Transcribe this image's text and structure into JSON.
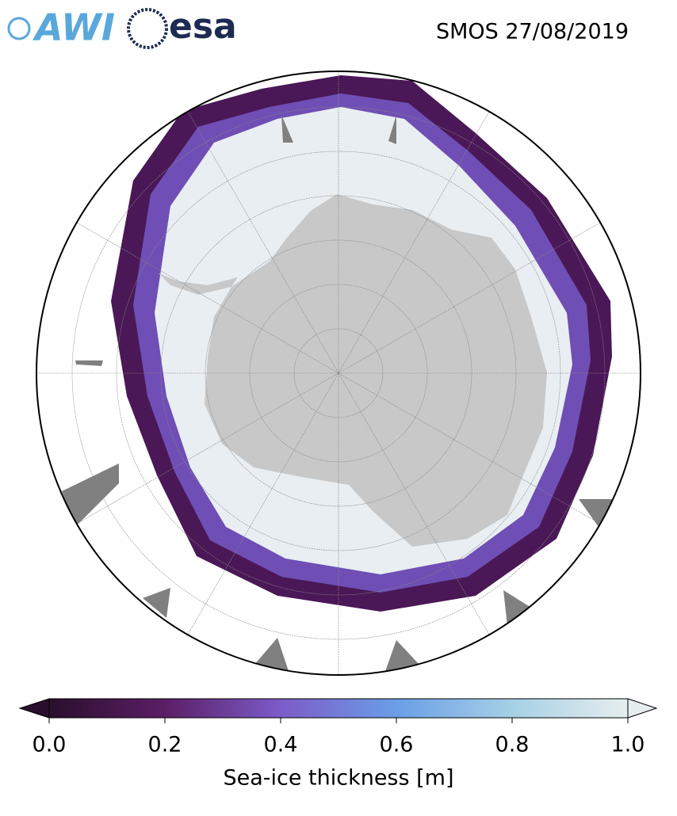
{
  "header": {
    "logos": [
      "AWI",
      "esa"
    ],
    "title": "SMOS 27/08/2019"
  },
  "colorbar": {
    "label": "Sea-ice thickness [m]",
    "lim": [
      0,
      1
    ],
    "ticks": [
      {
        "value": 0,
        "label": "0.0"
      },
      {
        "value": 0.2,
        "label": "0.2"
      },
      {
        "value": 0.4,
        "label": "0.4"
      },
      {
        "value": 0.6,
        "label": "0.6"
      },
      {
        "value": 0.8,
        "label": "0.8"
      },
      {
        "value": 1,
        "label": "1.0"
      }
    ],
    "colors": [
      "#2a0f2c",
      "#5b1e66",
      "#7c5bc8",
      "#6a9ee6",
      "#a6d0e6",
      "#e6eeee"
    ]
  }
}
